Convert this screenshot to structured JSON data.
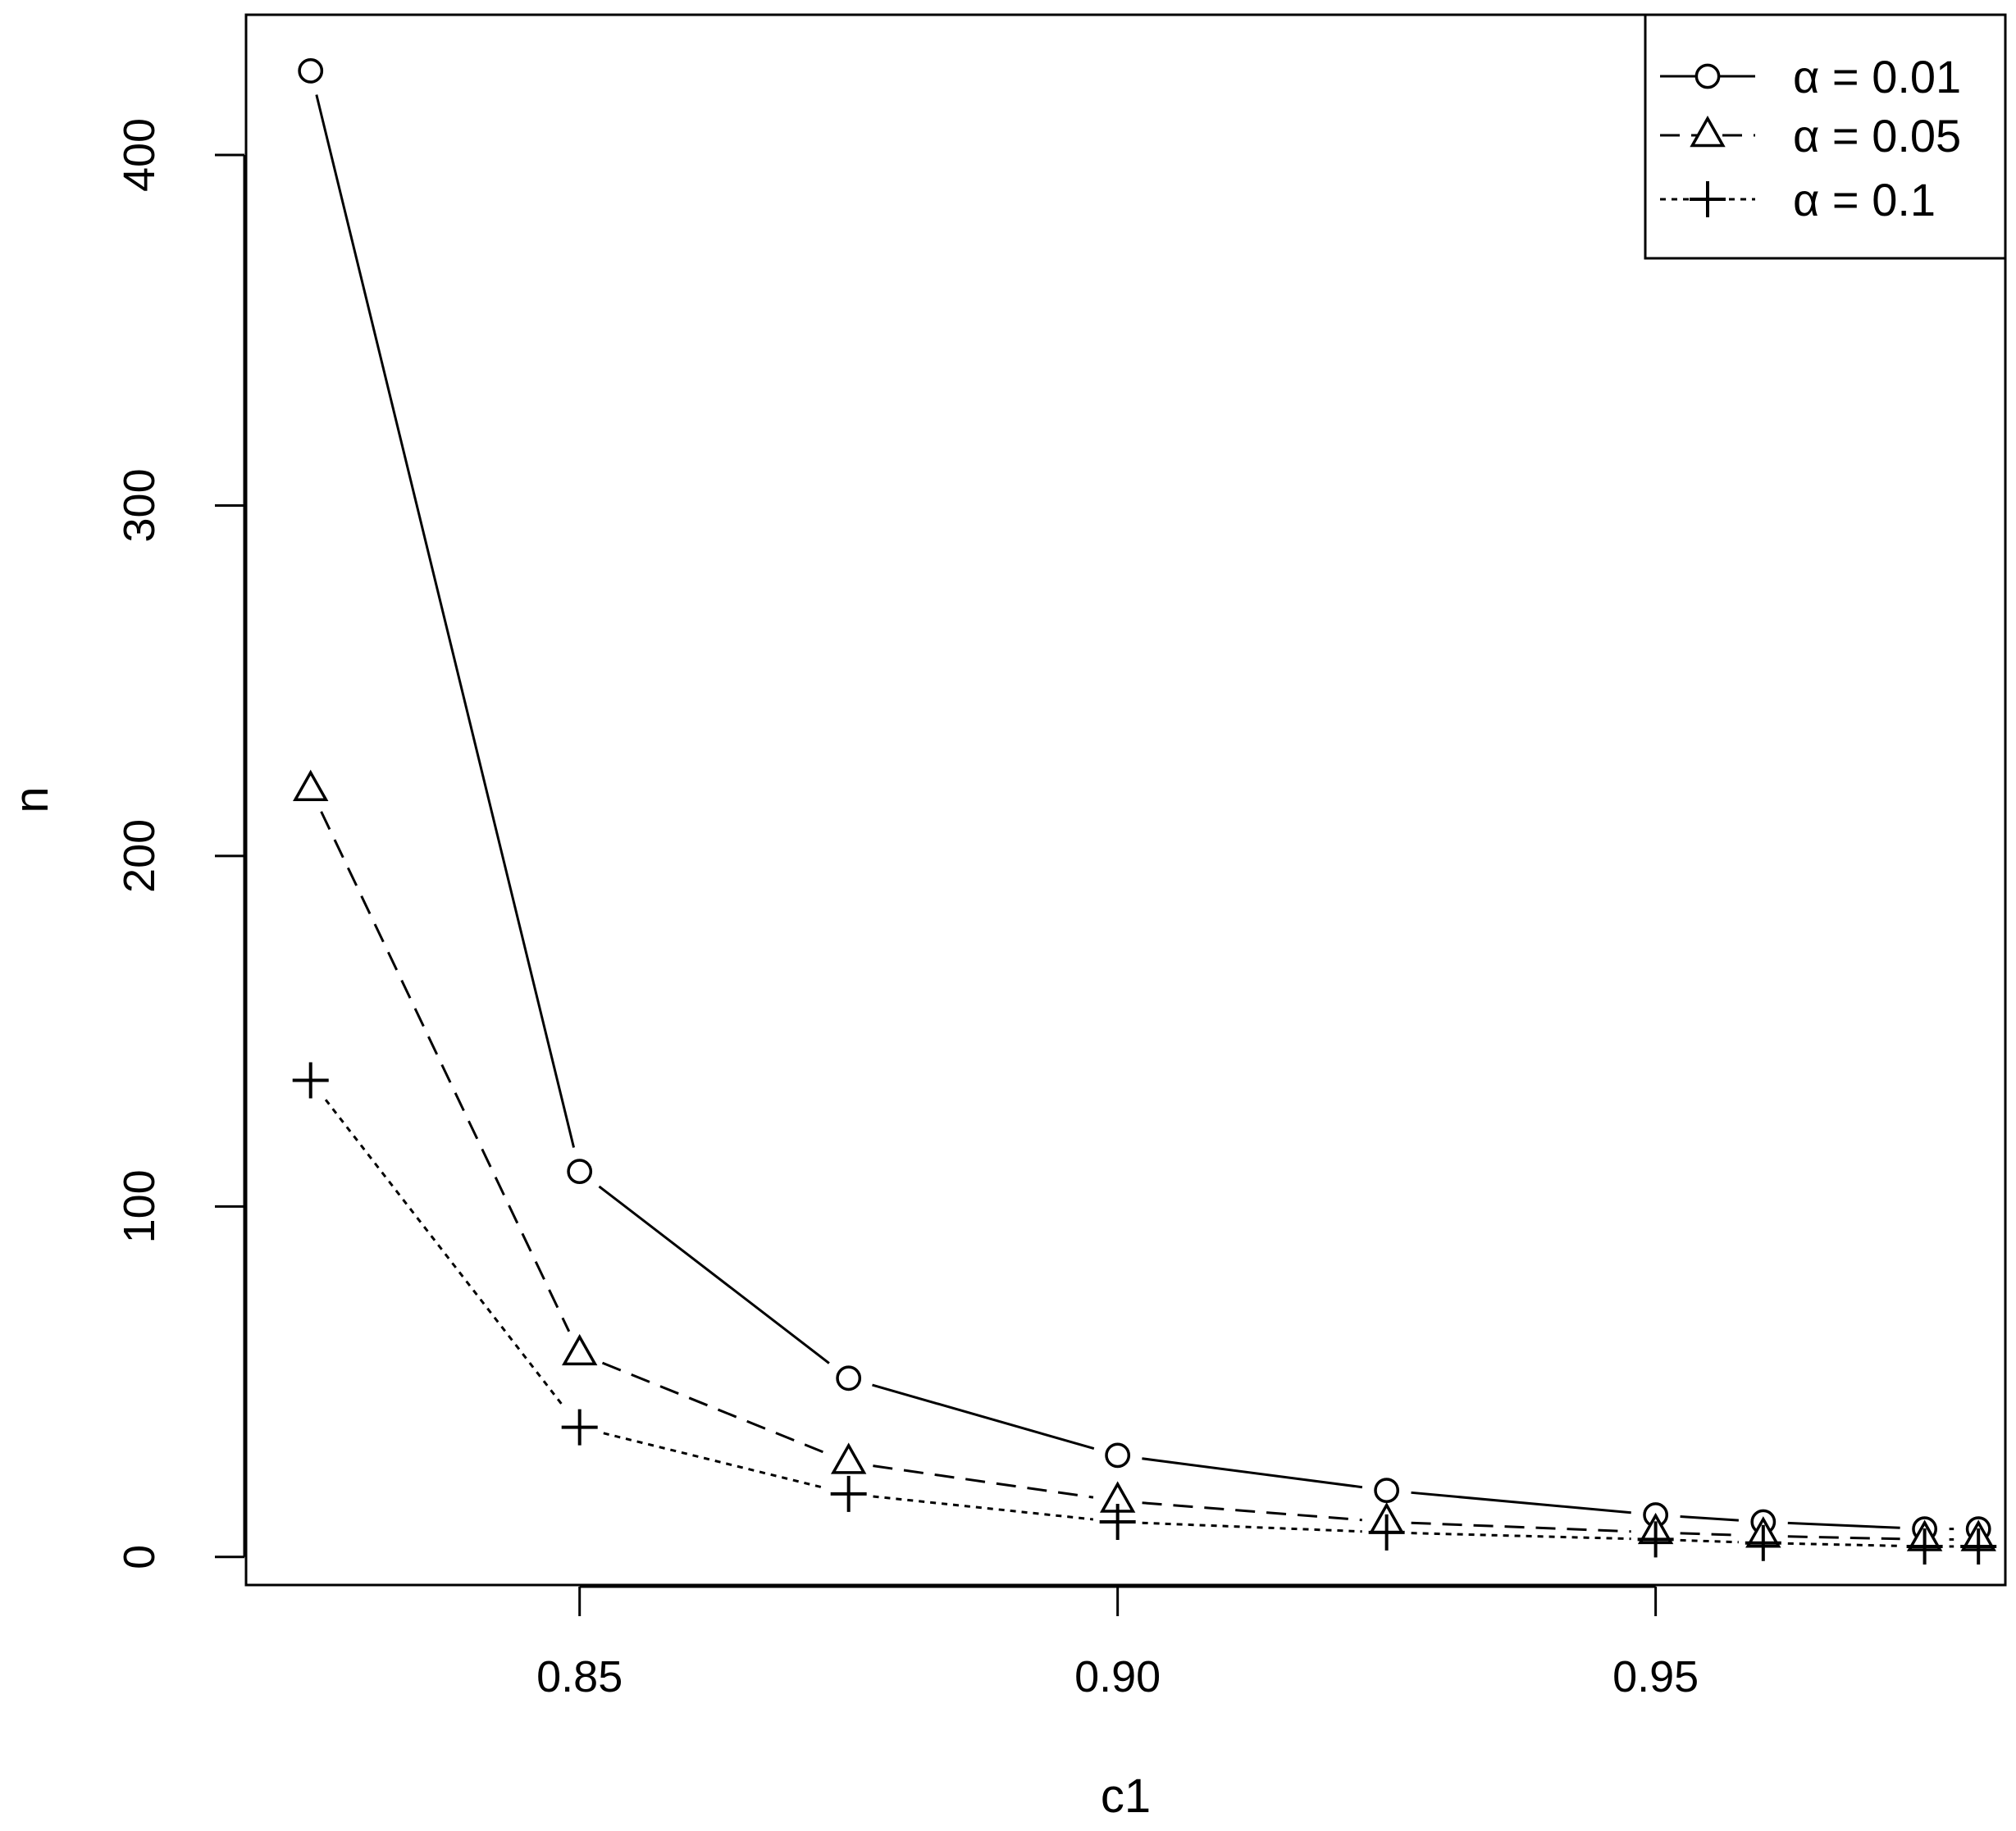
{
  "chart_data": {
    "type": "line",
    "title": "",
    "xlabel": "c1",
    "ylabel": "n",
    "xlim": [
      0.819,
      0.9825
    ],
    "ylim": [
      -8,
      440
    ],
    "x_ticks": [
      0.85,
      0.9,
      0.95
    ],
    "x_tick_labels": [
      "0.85",
      "0.90",
      "0.95"
    ],
    "y_ticks": [
      0,
      100,
      200,
      300,
      400
    ],
    "y_tick_labels": [
      "0",
      "100",
      "200",
      "300",
      "400"
    ],
    "x": [
      0.825,
      0.85,
      0.875,
      0.9,
      0.925,
      0.95,
      0.96,
      0.975,
      0.98
    ],
    "series": [
      {
        "name": "α = 0.01",
        "marker": "circle",
        "line_style": "solid",
        "values": [
          424,
          110,
          51,
          29,
          19,
          12,
          10,
          8,
          8
        ]
      },
      {
        "name": "α = 0.05",
        "marker": "triangle",
        "line_style": "dashed",
        "values": [
          219,
          58,
          27,
          16,
          10,
          7,
          6,
          5,
          5
        ]
      },
      {
        "name": "α = 0.1",
        "marker": "plus",
        "line_style": "dotted",
        "values": [
          136,
          37,
          18,
          10,
          7,
          5,
          4,
          3,
          3
        ]
      }
    ],
    "legend_position": "top-right",
    "grid": false,
    "colors": {
      "line": "#000000",
      "background": "#ffffff"
    }
  }
}
